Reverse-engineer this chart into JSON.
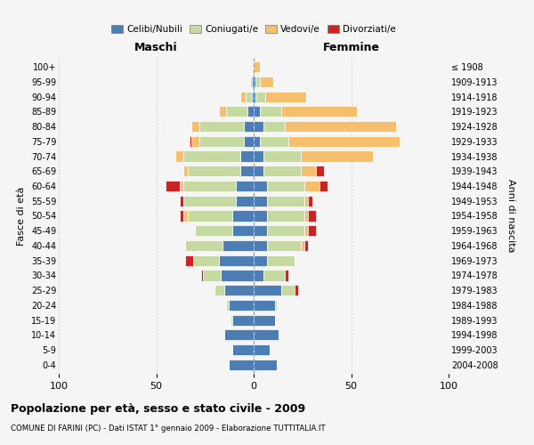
{
  "age_groups": [
    "0-4",
    "5-9",
    "10-14",
    "15-19",
    "20-24",
    "25-29",
    "30-34",
    "35-39",
    "40-44",
    "45-49",
    "50-54",
    "55-59",
    "60-64",
    "65-69",
    "70-74",
    "75-79",
    "80-84",
    "85-89",
    "90-94",
    "95-99",
    "100+"
  ],
  "birth_years": [
    "2004-2008",
    "1999-2003",
    "1994-1998",
    "1989-1993",
    "1984-1988",
    "1979-1983",
    "1974-1978",
    "1969-1973",
    "1964-1968",
    "1959-1963",
    "1954-1958",
    "1949-1953",
    "1944-1948",
    "1939-1943",
    "1934-1938",
    "1929-1933",
    "1924-1928",
    "1919-1923",
    "1914-1918",
    "1909-1913",
    "≤ 1908"
  ],
  "males": {
    "celibi": [
      13,
      11,
      15,
      11,
      13,
      15,
      17,
      18,
      16,
      11,
      11,
      9,
      9,
      7,
      7,
      5,
      5,
      3,
      1,
      1,
      0
    ],
    "coniugati": [
      0,
      0,
      0,
      1,
      1,
      5,
      9,
      13,
      19,
      19,
      23,
      27,
      27,
      27,
      29,
      23,
      23,
      11,
      3,
      1,
      0
    ],
    "vedovi": [
      0,
      0,
      0,
      0,
      0,
      0,
      0,
      0,
      0,
      0,
      2,
      0,
      2,
      2,
      4,
      4,
      4,
      4,
      3,
      0,
      0
    ],
    "divorziati": [
      0,
      0,
      0,
      0,
      0,
      0,
      1,
      4,
      0,
      0,
      2,
      2,
      7,
      0,
      0,
      1,
      0,
      0,
      0,
      0,
      0
    ]
  },
  "females": {
    "nubili": [
      12,
      8,
      13,
      11,
      11,
      14,
      5,
      7,
      7,
      7,
      7,
      7,
      7,
      5,
      5,
      3,
      5,
      3,
      1,
      1,
      0
    ],
    "coniugate": [
      0,
      0,
      0,
      0,
      1,
      7,
      11,
      14,
      17,
      19,
      19,
      19,
      19,
      19,
      19,
      15,
      11,
      11,
      5,
      2,
      0
    ],
    "vedove": [
      0,
      0,
      0,
      0,
      0,
      0,
      0,
      0,
      2,
      2,
      2,
      2,
      8,
      8,
      37,
      57,
      57,
      39,
      21,
      7,
      3
    ],
    "divorziate": [
      0,
      0,
      0,
      0,
      0,
      2,
      2,
      0,
      2,
      4,
      4,
      2,
      4,
      4,
      0,
      0,
      0,
      0,
      0,
      0,
      0
    ]
  },
  "colors": {
    "celibi": "#4d7db5",
    "coniugati": "#c5d9a0",
    "vedovi": "#f5bf6e",
    "divorziati": "#cc2222"
  },
  "title": "Popolazione per età, sesso e stato civile - 2009",
  "subtitle": "COMUNE DI FARINI (PC) - Dati ISTAT 1° gennaio 2009 - Elaborazione TUTTITALIA.IT",
  "xlabel_left": "Maschi",
  "xlabel_right": "Femmine",
  "ylabel": "Fasce di età",
  "ylabel_right": "Anni di nascita",
  "xlim": 100,
  "legend_labels": [
    "Celibi/Nubili",
    "Coniugati/e",
    "Vedovi/e",
    "Divorziati/e"
  ],
  "bg_color": "#f5f5f5"
}
